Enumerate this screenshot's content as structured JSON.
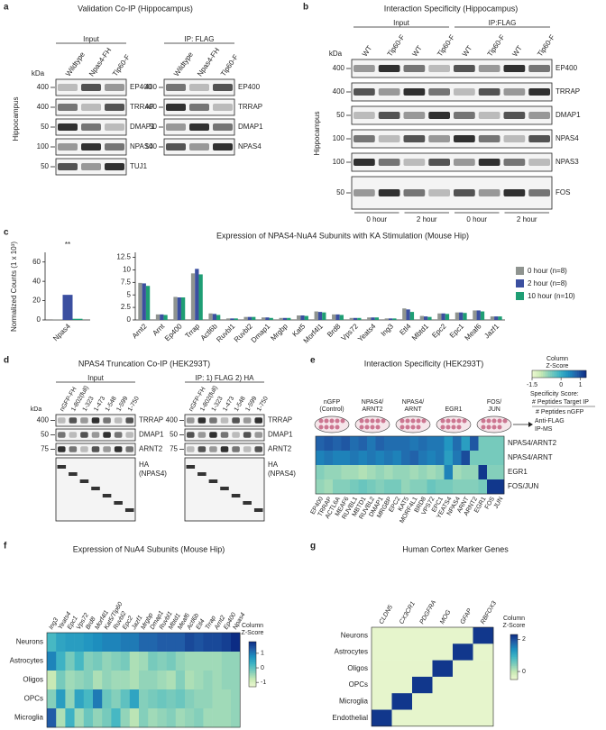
{
  "figure": {
    "a": {
      "letter": "a",
      "title": "Validation Co-IP (Hippocampus)",
      "side_label": "Hippocampus",
      "kda": "kDa",
      "input": {
        "header": "Input",
        "lanes": [
          "Wildtype",
          "Npas4-FH",
          "Tip60-F"
        ],
        "markers": [
          400,
          400,
          50,
          100,
          50
        ],
        "proteins": [
          "EP400",
          "TRRAP",
          "DMAP1",
          "NPAS4",
          "TUJ1"
        ]
      },
      "ip": {
        "header": "IP: FLAG",
        "lanes": [
          "Wildtype",
          "Npas4-FH",
          "Tip60-F"
        ],
        "markers": [
          400,
          400,
          50,
          100
        ],
        "proteins": [
          "EP400",
          "TRRAP",
          "DMAP1",
          "NPAS4"
        ]
      }
    },
    "b": {
      "letter": "b",
      "title": "Interaction Specificity (Hippocampus)",
      "side_label": "Hippocampus",
      "kda": "kDa",
      "groups": [
        "Input",
        "IP:FLAG"
      ],
      "blot": {
        "lanes": [
          "WT",
          "Tip60-F",
          "WT",
          "Tip60-F",
          "WT",
          "Tip60-F",
          "WT",
          "Tip60-F"
        ],
        "markers": [
          400,
          400,
          50,
          100,
          100,
          50
        ],
        "proteins": [
          "EP400",
          "TRRAP",
          "DMAP1",
          "NPAS4",
          "NPAS3",
          "FOS"
        ]
      },
      "timepoints": [
        "0 hour",
        "2 hour",
        "0 hour",
        "2 hour"
      ]
    },
    "c": {
      "letter": "c",
      "type": "bar",
      "title": "Expression of NPAS4-NuA4 Subunits with KA Stimulation (Mouse Hip)",
      "y_label": "Normalized Counts (1 x 10³)",
      "significance": "**",
      "inset": {
        "categories": [
          "Npas4"
        ],
        "ylim": [
          0,
          70
        ],
        "yticks": [
          0,
          20,
          40,
          60
        ],
        "values": [
          [
            0.6
          ],
          [
            26
          ],
          [
            1.2
          ]
        ]
      },
      "categories": [
        "Arnt2",
        "Arnt",
        "Ep400",
        "Trrap",
        "Actl6b",
        "Ruvbl1",
        "Ruvbl2",
        "Dmap1",
        "Mrgbp",
        "Kat5",
        "Morf4l1",
        "Brd8",
        "Vps72",
        "Yeats4",
        "Ing3",
        "Etl4",
        "Mbtd1",
        "Epc2",
        "Epc1",
        "Meaf6",
        "Jazf1"
      ],
      "ylim": [
        0,
        13.5
      ],
      "yticks": [
        0,
        2.5,
        5,
        7.5,
        10,
        12.5
      ],
      "series": [
        {
          "name": "0 hour (n=8)",
          "color": "#8f9490",
          "values": [
            7.4,
            1.1,
            4.6,
            9.3,
            1.3,
            0.3,
            0.6,
            0.5,
            0.4,
            0.9,
            1.7,
            1.1,
            0.4,
            0.5,
            0.3,
            2.3,
            0.8,
            1.3,
            1.5,
            1.9,
            0.7
          ]
        },
        {
          "name": "2 hour (n=8)",
          "color": "#3b4fa0",
          "values": [
            7.3,
            1.1,
            4.5,
            10.2,
            1.2,
            0.3,
            0.6,
            0.5,
            0.4,
            0.9,
            1.6,
            1.1,
            0.4,
            0.5,
            0.3,
            2.1,
            0.7,
            1.3,
            1.5,
            1.9,
            0.7
          ]
        },
        {
          "name": "10 hour (n=10)",
          "color": "#1f9e74",
          "values": [
            6.8,
            1.0,
            4.5,
            9.1,
            1.0,
            0.3,
            0.6,
            0.4,
            0.4,
            0.8,
            1.5,
            1.0,
            0.4,
            0.5,
            0.3,
            1.6,
            0.6,
            1.2,
            1.4,
            1.7,
            0.7
          ]
        }
      ]
    },
    "d": {
      "letter": "d",
      "title": "NPAS4 Truncation Co-IP (HEK293T)",
      "kda": "kDa",
      "input": {
        "header": "Input",
        "lanes": [
          "nGFP-FH",
          "1-802(full)",
          "1-323",
          "1-473",
          "1-548",
          "1-599",
          "1-750"
        ],
        "markers": [
          400,
          50,
          75
        ],
        "proteins": [
          "TRRAP",
          "DMAP1",
          "ARNT2"
        ],
        "ha": [
          "HA",
          "(NPAS4)"
        ]
      },
      "ip": {
        "header": "IP: 1) FLAG 2) HA",
        "lanes": [
          "nGFP-FH",
          "1-802(full)",
          "1-323",
          "1-473",
          "1-548",
          "1-599",
          "1-750"
        ],
        "markers": [
          400,
          50,
          75
        ],
        "proteins": [
          "TRRAP",
          "DMAP1",
          "ARNT2"
        ],
        "ha": [
          "HA",
          "(NPAS4)"
        ]
      }
    },
    "e": {
      "letter": "e",
      "title": "Interaction Specificity (HEK293T)",
      "conditions": [
        [
          "nGFP",
          "(Control)"
        ],
        [
          "NPAS4/",
          "ARNT2"
        ],
        [
          "NPAS4/",
          "ARNT"
        ],
        [
          "EGR1"
        ],
        [
          "FOS/",
          "JUN"
        ]
      ],
      "arrow_label": [
        "Anti-FLAG",
        "IP-MS"
      ],
      "colorbar_title": [
        "Column",
        "Z-Score"
      ],
      "zlim": [
        -1.5,
        1.3
      ],
      "colorbar_ticks": [
        -1.5,
        0,
        1
      ],
      "score_legend": [
        "Specificity Score:",
        "# Peptides Target IP",
        "# Peptides nGFP"
      ],
      "rows": [
        "NPAS4/ARNT2",
        "NPAS4/ARNT",
        "EGR1",
        "FOS/JUN"
      ],
      "columns": [
        "EP400",
        "TRRAP",
        "ACTL6A",
        "MEAF6",
        "RUVBL1",
        "MBTD1",
        "RUVBL2",
        "DMAP1",
        "MRGBP",
        "EPC2",
        "KAT5",
        "MORF4L1",
        "BRD8",
        "VPS72",
        "EPC1",
        "YEATS4",
        "NPAS4",
        "ARNT",
        "ARNT2",
        "EGR1",
        "FOS",
        "JUN"
      ],
      "values": [
        [
          0.8,
          0.9,
          0.8,
          0.9,
          0.7,
          0.8,
          0.6,
          0.8,
          0.7,
          0.7,
          0.7,
          0.6,
          0.7,
          0.6,
          0.6,
          0.3,
          0.7,
          0.2,
          0.9,
          -0.5,
          -0.5,
          -0.5
        ],
        [
          0.5,
          0.6,
          0.5,
          0.5,
          0.6,
          0.5,
          0.6,
          0.5,
          0.6,
          0.5,
          0.7,
          0.8,
          0.6,
          0.5,
          0.6,
          0.2,
          0.6,
          1.0,
          -0.5,
          -0.5,
          -0.5,
          -0.5
        ],
        [
          -0.6,
          -0.7,
          -0.7,
          -0.8,
          -0.8,
          -0.9,
          -0.8,
          -0.7,
          -0.8,
          -0.7,
          -0.7,
          -0.8,
          -0.7,
          -0.8,
          -0.7,
          0.5,
          -0.8,
          -0.7,
          -0.7,
          1.2,
          -0.6,
          -0.6
        ],
        [
          -0.7,
          -0.8,
          -0.6,
          -0.6,
          -0.5,
          -0.4,
          -0.5,
          -0.6,
          -0.5,
          -0.5,
          -0.7,
          -0.6,
          -0.6,
          -0.4,
          -0.5,
          -0.5,
          -0.6,
          -0.6,
          -0.6,
          -0.5,
          1.2,
          1.2
        ]
      ]
    },
    "f": {
      "letter": "f",
      "title": "Expression of NuA4 Subunits (Mouse Hip)",
      "colorbar_title": [
        "Column",
        "Z-Score"
      ],
      "zlim": [
        -1.3,
        1.8
      ],
      "colorbar_ticks": [
        1,
        0,
        -1
      ],
      "rows": [
        "Neurons",
        "Astrocytes",
        "Oligos",
        "OPCs",
        "Microglia"
      ],
      "columns": [
        "Ing3",
        "Yeats4",
        "Epc1",
        "Vps72",
        "Brd8",
        "Morf4l1",
        "Kat5/Tip60",
        "Ruvbl2",
        "Epc2",
        "Jazf1",
        "Mrgbp",
        "Dmap1",
        "Ruvbl1",
        "Mbtd1",
        "Meaf6",
        "Actl6b",
        "Etl4",
        "Trrap",
        "Arnt2",
        "Ep400",
        "Npas4"
      ],
      "values": [
        [
          0.2,
          0.5,
          0.6,
          0.6,
          0.7,
          0.8,
          0.9,
          0.9,
          1.0,
          1.0,
          1.2,
          1.2,
          1.3,
          1.3,
          1.3,
          1.5,
          1.4,
          1.5,
          1.5,
          1.6,
          1.8
        ],
        [
          0.9,
          0.3,
          -0.2,
          0.2,
          -0.3,
          -0.2,
          -0.4,
          -0.3,
          -0.2,
          -0.6,
          -0.5,
          -0.2,
          -0.3,
          -0.2,
          -0.4,
          -0.5,
          -0.5,
          -0.5,
          -0.5,
          -0.4,
          -0.4
        ],
        [
          -0.8,
          -0.2,
          -0.5,
          -0.4,
          -0.3,
          -0.6,
          -0.4,
          -0.5,
          -0.5,
          -0.6,
          -0.4,
          -0.4,
          -0.5,
          -0.6,
          -0.3,
          -0.6,
          -0.5,
          -0.4,
          -0.5,
          -0.4,
          -0.4
        ],
        [
          -0.3,
          0.6,
          -0.4,
          0.5,
          0.2,
          1.0,
          -0.1,
          -0.3,
          0.0,
          0.5,
          -0.3,
          -0.2,
          -0.1,
          -0.2,
          -0.1,
          -0.3,
          -0.4,
          -0.4,
          -0.5,
          -0.5,
          -0.4
        ],
        [
          1.3,
          -0.6,
          0.3,
          -0.5,
          -0.1,
          -0.4,
          -0.2,
          0.2,
          -0.4,
          -0.7,
          -0.3,
          -0.5,
          -0.4,
          -0.3,
          -0.5,
          -0.4,
          -0.3,
          -0.5,
          -0.5,
          -0.5,
          -0.4
        ]
      ]
    },
    "g": {
      "letter": "g",
      "title": "Human Cortex Marker Genes",
      "colorbar_title": [
        "Column",
        "Z-Score"
      ],
      "zlim": [
        -0.5,
        2.3
      ],
      "colorbar_ticks": [
        2,
        0
      ],
      "rows": [
        "Neurons",
        "Astrocytes",
        "Oligos",
        "OPCs",
        "Microglia",
        "Endothelial"
      ],
      "columns": [
        "CLDN5",
        "CX3CR1",
        "PDGFRA",
        "MOG",
        "GFAP",
        "RBFOX3"
      ],
      "values": [
        [
          -0.4,
          -0.4,
          -0.4,
          -0.4,
          -0.4,
          2.2
        ],
        [
          -0.4,
          -0.4,
          -0.4,
          -0.4,
          2.2,
          -0.4
        ],
        [
          -0.4,
          -0.4,
          -0.4,
          2.2,
          -0.4,
          -0.4
        ],
        [
          -0.4,
          -0.4,
          2.2,
          -0.4,
          -0.4,
          -0.4
        ],
        [
          -0.4,
          2.2,
          -0.4,
          -0.4,
          -0.4,
          -0.4
        ],
        [
          2.2,
          -0.4,
          -0.4,
          -0.4,
          -0.4,
          -0.4
        ]
      ]
    }
  }
}
